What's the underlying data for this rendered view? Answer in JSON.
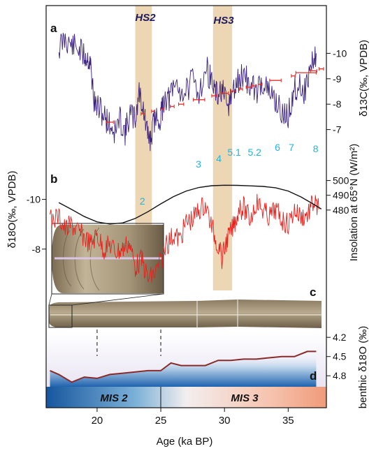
{
  "chart_data": {
    "type": "line",
    "panel_labels": [
      "a",
      "b",
      "c",
      "d"
    ],
    "x_axis": {
      "label": "Age (ka BP)",
      "lim": [
        16,
        38
      ],
      "ticks": [
        20,
        25,
        30,
        35
      ]
    },
    "stadials": [
      {
        "name": "HS2",
        "start": 23.0,
        "end": 24.3
      },
      {
        "name": "HS3",
        "start": 29.1,
        "end": 30.6
      }
    ],
    "panel_a": {
      "ylabel": "δ13C(‰, VPDB)",
      "ylim": [
        -6,
        -11
      ],
      "yticks": [
        -10,
        -9,
        -8,
        -7
      ],
      "series": [
        {
          "color": "#3b2080",
          "points": [
            [
              17.0,
              -10.2
            ],
            [
              17.5,
              -10.6
            ],
            [
              18.0,
              -10.3
            ],
            [
              18.5,
              -10.2
            ],
            [
              19.0,
              -9.9
            ],
            [
              19.3,
              -9.8
            ],
            [
              19.5,
              -9.5
            ],
            [
              19.8,
              -8.0
            ],
            [
              20.2,
              -7.8
            ],
            [
              20.6,
              -7.5
            ],
            [
              21.0,
              -7.2
            ],
            [
              21.4,
              -6.9
            ],
            [
              21.8,
              -7.4
            ],
            [
              22.2,
              -6.9
            ],
            [
              22.6,
              -7.6
            ],
            [
              23.0,
              -7.4
            ],
            [
              23.3,
              -8.5
            ],
            [
              23.6,
              -7.9
            ],
            [
              23.9,
              -6.9
            ],
            [
              24.2,
              -6.6
            ],
            [
              24.5,
              -7.4
            ],
            [
              25.0,
              -7.5
            ],
            [
              25.3,
              -8.3
            ],
            [
              25.7,
              -8.2
            ],
            [
              26.2,
              -8.8
            ],
            [
              26.8,
              -8.4
            ],
            [
              27.5,
              -8.9
            ],
            [
              28.0,
              -8.5
            ],
            [
              28.6,
              -9.4
            ],
            [
              29.0,
              -8.9
            ],
            [
              29.4,
              -8.3
            ],
            [
              29.8,
              -8.6
            ],
            [
              30.2,
              -7.8
            ],
            [
              30.6,
              -8.4
            ],
            [
              31.0,
              -8.8
            ],
            [
              31.5,
              -9.2
            ],
            [
              32.0,
              -8.7
            ],
            [
              32.5,
              -8.5
            ],
            [
              33.0,
              -8.9
            ],
            [
              33.5,
              -8.4
            ],
            [
              34.0,
              -8.2
            ],
            [
              34.5,
              -7.6
            ],
            [
              35.0,
              -7.5
            ],
            [
              35.4,
              -8.5
            ],
            [
              35.8,
              -8.8
            ],
            [
              36.3,
              -8.5
            ],
            [
              36.8,
              -9.5
            ],
            [
              37.2,
              -10.0
            ]
          ]
        }
      ],
      "dating_errors": {
        "color": "#e0302a",
        "points": [
          [
            21.0,
            0.28
          ],
          [
            23.6,
            0.15
          ],
          [
            24.4,
            0.12
          ],
          [
            25.1,
            0.12
          ],
          [
            25.9,
            0.15
          ],
          [
            26.6,
            0.2
          ],
          [
            28.0,
            0.45
          ],
          [
            29.2,
            0.2
          ],
          [
            30.0,
            0.3
          ],
          [
            30.7,
            0.2
          ],
          [
            31.3,
            0.12
          ],
          [
            31.9,
            0.2
          ],
          [
            32.3,
            0.15
          ],
          [
            32.8,
            0.15
          ],
          [
            34.0,
            0.45
          ],
          [
            35.4,
            0.15
          ],
          [
            36.4,
            0.8
          ],
          [
            37.0,
            0.25
          ],
          [
            37.6,
            0.18
          ]
        ]
      }
    },
    "panel_b": {
      "ylabel": "δ18O(‰, VPDB)",
      "ylim": [
        -6,
        -11
      ],
      "yticks": [
        -10,
        -8
      ],
      "annotation_labels": [
        "2",
        "3",
        "4",
        "5.1",
        "5.2",
        "6",
        "7",
        "8"
      ],
      "annotation_x": [
        24.0,
        28.4,
        30.0,
        31.2,
        32.8,
        34.6,
        35.7,
        37.6
      ],
      "series": [
        {
          "color": "#e8201c",
          "points": [
            [
              16.3,
              -9.2
            ],
            [
              17.0,
              -9.3
            ],
            [
              17.5,
              -8.8
            ],
            [
              18.0,
              -9.0
            ],
            [
              18.5,
              -8.7
            ],
            [
              19.0,
              -8.5
            ],
            [
              19.5,
              -8.2
            ],
            [
              20.0,
              -8.6
            ],
            [
              20.5,
              -8.0
            ],
            [
              21.0,
              -8.2
            ],
            [
              21.5,
              -7.9
            ],
            [
              22.0,
              -8.0
            ],
            [
              22.5,
              -8.3
            ],
            [
              23.0,
              -7.3
            ],
            [
              23.5,
              -7.6
            ],
            [
              24.0,
              -6.8
            ],
            [
              24.5,
              -7.0
            ],
            [
              25.0,
              -7.5
            ],
            [
              25.5,
              -8.2
            ],
            [
              26.0,
              -8.6
            ],
            [
              26.5,
              -8.4
            ],
            [
              27.0,
              -9.1
            ],
            [
              27.5,
              -9.2
            ],
            [
              28.0,
              -9.6
            ],
            [
              28.5,
              -9.8
            ],
            [
              29.0,
              -8.9
            ],
            [
              29.4,
              -8.3
            ],
            [
              29.8,
              -7.6
            ],
            [
              30.2,
              -8.4
            ],
            [
              30.6,
              -8.8
            ],
            [
              31.0,
              -9.4
            ],
            [
              31.5,
              -9.7
            ],
            [
              32.0,
              -9.2
            ],
            [
              32.5,
              -9.9
            ],
            [
              33.0,
              -9.6
            ],
            [
              33.5,
              -9.3
            ],
            [
              34.0,
              -9.6
            ],
            [
              34.5,
              -9.2
            ],
            [
              35.0,
              -9.0
            ],
            [
              35.5,
              -9.6
            ],
            [
              36.0,
              -9.3
            ],
            [
              36.5,
              -9.4
            ],
            [
              37.0,
              -9.9
            ],
            [
              37.4,
              -9.6
            ]
          ]
        }
      ]
    },
    "insolation": {
      "ylabel": "Insolation at 65°N (W/m²)",
      "ylim": [
        470,
        505
      ],
      "yticks": [
        500,
        490,
        480
      ],
      "series": [
        {
          "color": "#111111",
          "points": [
            [
              17.0,
              485.0
            ],
            [
              18.0,
              480.4
            ],
            [
              19.0,
              475.6
            ],
            [
              20.0,
              472.0
            ],
            [
              21.0,
              470.5
            ],
            [
              22.0,
              471.3
            ],
            [
              23.0,
              474.3
            ],
            [
              24.0,
              478.9
            ],
            [
              25.0,
              484.2
            ],
            [
              26.0,
              489.1
            ],
            [
              27.0,
              492.9
            ],
            [
              28.0,
              495.3
            ],
            [
              29.0,
              496.5
            ],
            [
              30.0,
              496.8
            ],
            [
              31.0,
              496.7
            ],
            [
              32.0,
              496.4
            ],
            [
              33.0,
              496.0
            ],
            [
              34.0,
              495.1
            ],
            [
              35.0,
              492.9
            ],
            [
              36.0,
              488.9
            ],
            [
              37.0,
              483.9
            ],
            [
              37.6,
              480.7
            ]
          ]
        }
      ]
    },
    "panel_d": {
      "ylabel": "benthic δ18O (‰)",
      "ylim": [
        4.1,
        4.95
      ],
      "yticks": [
        4.2,
        4.5,
        4.8
      ],
      "series": [
        {
          "color": "#8a2b2b",
          "points": [
            [
              16.3,
              4.72
            ],
            [
              17.0,
              4.78
            ],
            [
              18.0,
              4.9
            ],
            [
              19.0,
              4.82
            ],
            [
              20.0,
              4.84
            ],
            [
              21.0,
              4.78
            ],
            [
              22.0,
              4.76
            ],
            [
              23.0,
              4.74
            ],
            [
              24.0,
              4.72
            ],
            [
              25.0,
              4.72
            ],
            [
              25.8,
              4.6
            ],
            [
              26.6,
              4.64
            ],
            [
              27.5,
              4.64
            ],
            [
              28.5,
              4.64
            ],
            [
              29.5,
              4.56
            ],
            [
              30.5,
              4.56
            ],
            [
              31.5,
              4.54
            ],
            [
              32.5,
              4.54
            ],
            [
              33.5,
              4.52
            ],
            [
              34.5,
              4.5
            ],
            [
              35.5,
              4.5
            ],
            [
              36.5,
              4.42
            ],
            [
              37.2,
              4.42
            ]
          ]
        }
      ]
    },
    "marine_isotope_stages": [
      {
        "name": "MIS 2",
        "start": 16,
        "end": 25
      },
      {
        "name": "MIS 3",
        "start": 25,
        "end": 38
      }
    ],
    "stage_colors": {
      "mis2": "#1f5fa8",
      "mis3": "#f4a98a"
    },
    "band_color": "#ecd6b4"
  }
}
